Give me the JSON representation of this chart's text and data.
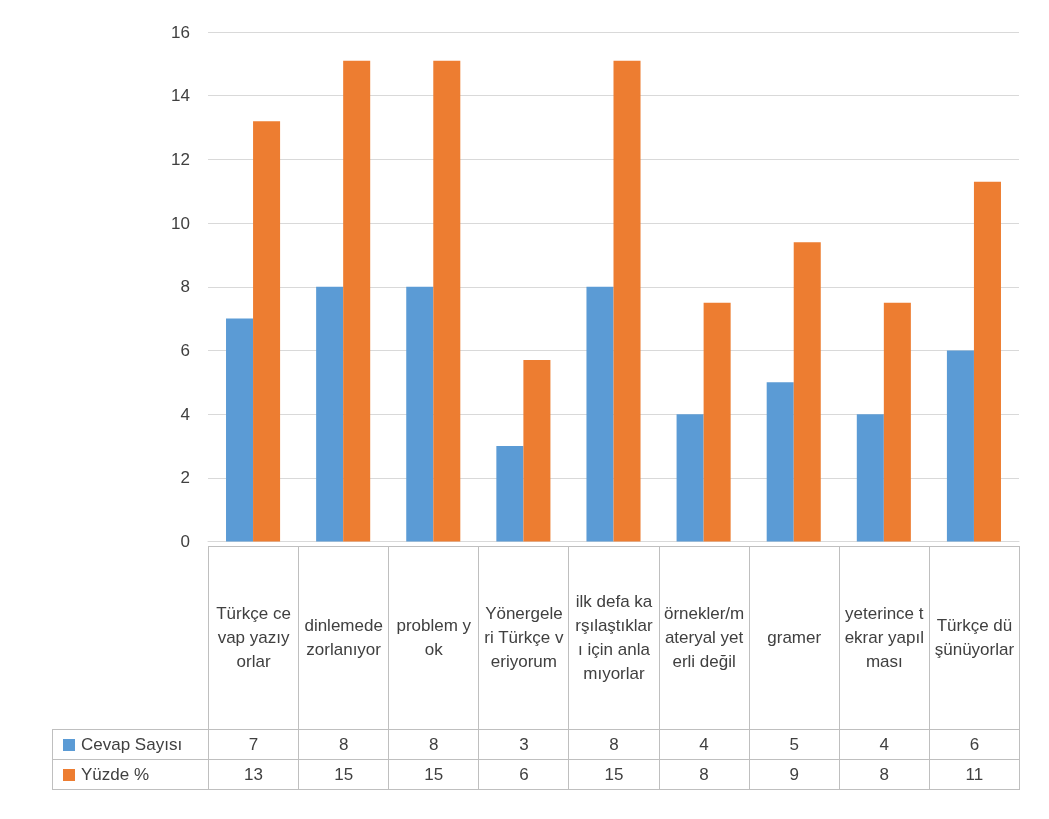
{
  "chart_data": {
    "type": "bar",
    "categories": [
      "Türkçe cevap yazıyorlar",
      "dinlemede zorlanıyor",
      "problem yok",
      "Yönergeleri Türkçe veriyorum",
      "ilk defa karşılaştıkları için anlamıyorlar",
      "örnekler/materyal yeterli değil",
      "gramer",
      "yeterince tekrar yapılması",
      "Türkçe düşünüyorlar"
    ],
    "series": [
      {
        "name": "Cevap Sayısı",
        "color": "#5b9bd5",
        "values": [
          7,
          8,
          8,
          3,
          8,
          4,
          5,
          4,
          6
        ],
        "value_labels": [
          "7",
          "8",
          "8",
          "3",
          "8",
          "4",
          "5",
          "4",
          "6"
        ]
      },
      {
        "name": "Yüzde %",
        "color": "#ed7d31",
        "values": [
          13.2,
          15.1,
          15.1,
          5.7,
          15.1,
          7.5,
          9.4,
          7.5,
          11.3
        ],
        "value_labels": [
          "13",
          "15",
          "15",
          "6",
          "15",
          "8",
          "9",
          "8",
          "11"
        ]
      }
    ],
    "ylim": [
      0,
      16
    ],
    "yticks": [
      0,
      2,
      4,
      6,
      8,
      10,
      12,
      14,
      16
    ],
    "grid": "y",
    "legend": "bottom"
  }
}
